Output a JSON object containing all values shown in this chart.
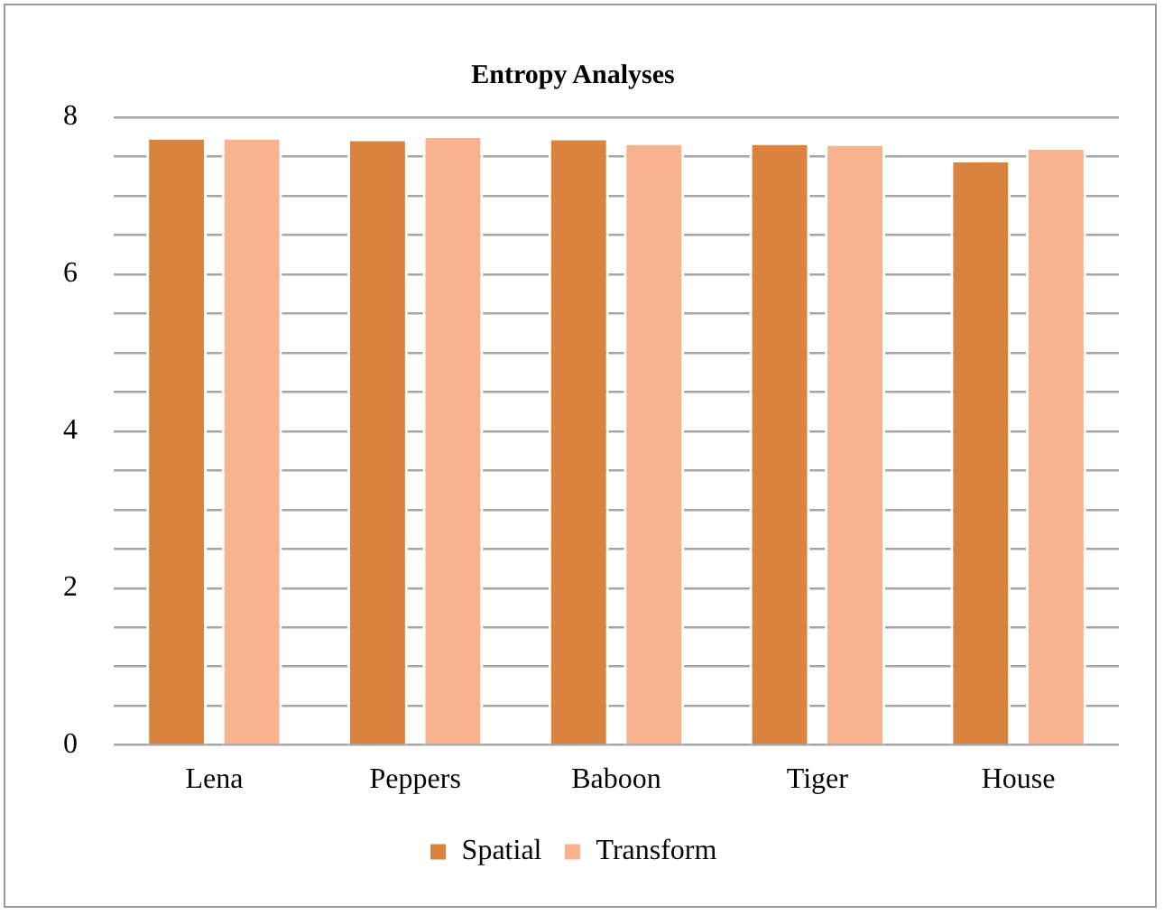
{
  "chart_data": {
    "type": "bar",
    "title": "Entropy Analyses",
    "categories": [
      "Lena",
      "Peppers",
      "Baboon",
      "Tiger",
      "House"
    ],
    "series": [
      {
        "name": "Spatial",
        "color": "#d9833e",
        "values": [
          7.75,
          7.73,
          7.74,
          7.68,
          7.46
        ]
      },
      {
        "name": "Transform",
        "color": "#f8b38e",
        "values": [
          7.75,
          7.77,
          7.68,
          7.67,
          7.62
        ]
      }
    ],
    "ylim": [
      0,
      8
    ],
    "yticks": [
      0,
      {
        "value": 0.5,
        "label": null
      },
      {
        "value": 1,
        "label": null
      },
      {
        "value": 1.5,
        "label": null
      },
      2,
      {
        "value": 2.5,
        "label": null
      },
      {
        "value": 3,
        "label": null
      },
      {
        "value": 3.5,
        "label": null
      },
      4,
      {
        "value": 4.5,
        "label": null
      },
      {
        "value": 5,
        "label": null
      },
      {
        "value": 5.5,
        "label": null
      },
      6,
      {
        "value": 6.5,
        "label": null
      },
      {
        "value": 7,
        "label": null
      },
      {
        "value": 7.5,
        "label": null
      },
      8
    ],
    "grid": "y",
    "legend": "bottom"
  }
}
